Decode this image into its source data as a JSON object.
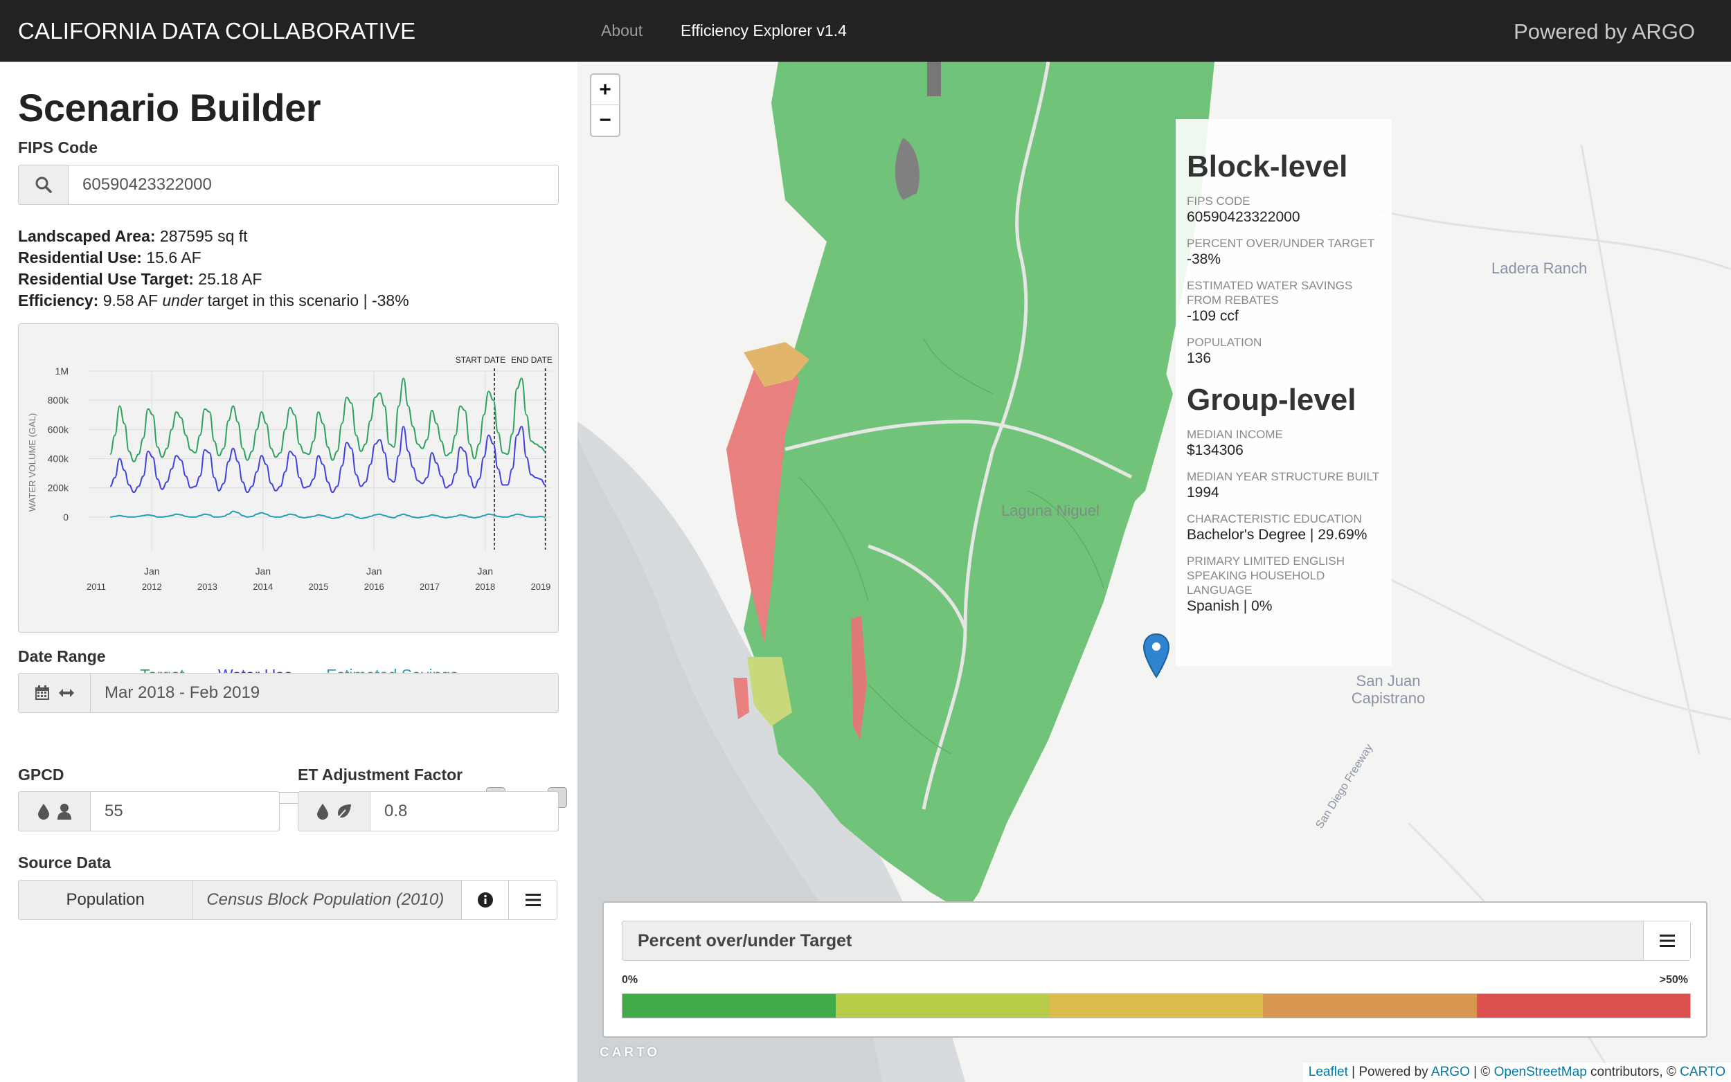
{
  "navbar": {
    "brand": "CALIFORNIA DATA COLLABORATIVE",
    "links": [
      "About",
      "Efficiency Explorer v1.4"
    ],
    "powered": "Powered by ARGO"
  },
  "sidebar": {
    "title": "Scenario Builder",
    "fips_label": "FIPS Code",
    "fips_value": "60590423322000",
    "stats": {
      "landscaped_label": "Landscaped Area:",
      "landscaped_value": " 287595 sq ft",
      "res_use_label": "Residential Use:",
      "res_use_value": " 15.6 AF",
      "res_target_label": "Residential Use Target:",
      "res_target_value": " 25.18 AF",
      "efficiency_label": "Efficiency:",
      "efficiency_pre": " 9.58 AF ",
      "efficiency_em": "under",
      "efficiency_post": " target in this scenario | -38%"
    },
    "date_range_label": "Date Range",
    "date_range_value": "Mar 2018 - Feb 2019",
    "gpcd_label": "GPCD",
    "gpcd_value": "55",
    "et_label": "ET Adjustment Factor",
    "et_value": "0.8",
    "source_label": "Source Data",
    "source_button": "Population",
    "source_value": "Census Block Population (2010)"
  },
  "chart_data": {
    "type": "line",
    "title": "",
    "xlabel": "",
    "ylabel": "WATER VOLUME (GAL)",
    "ylim": [
      -100000,
      1000000
    ],
    "yticks": [
      "0",
      "200k",
      "400k",
      "600k",
      "800k",
      "1M"
    ],
    "xticks_years": [
      "2011",
      "2012",
      "2013",
      "2014",
      "2015",
      "2016",
      "2017",
      "2018",
      "2019"
    ],
    "xticks_jan": [
      "Jan",
      "Jan",
      "Jan",
      "Jan"
    ],
    "annotations": [
      "START DATE",
      "END DATE"
    ],
    "colors": {
      "target": "#2ca25f",
      "water_use": "#4040e0",
      "savings": "#26a0b0"
    },
    "x_start": "2011-04",
    "x_end": "2019-02",
    "series": [
      {
        "name": "Target",
        "values": [
          430000,
          560000,
          760000,
          640000,
          450000,
          380000,
          430000,
          540000,
          740000,
          700000,
          480000,
          410000,
          470000,
          600000,
          720000,
          680000,
          560000,
          460000,
          440000,
          560000,
          740000,
          720000,
          520000,
          420000,
          470000,
          660000,
          760000,
          650000,
          470000,
          390000,
          450000,
          600000,
          720000,
          640000,
          470000,
          410000,
          440000,
          600000,
          750000,
          700000,
          500000,
          440000,
          430000,
          520000,
          720000,
          640000,
          480000,
          390000,
          450000,
          640000,
          820000,
          780000,
          560000,
          450000,
          500000,
          660000,
          820000,
          850000,
          760000,
          500000,
          480000,
          760000,
          950000,
          760000,
          620000,
          500000,
          470000,
          530000,
          730000,
          640000,
          520000,
          420000,
          440000,
          560000,
          760000,
          730000,
          500000,
          400000,
          500000,
          700000,
          860000,
          800000,
          580000,
          440000,
          430000,
          570000,
          880000,
          950000,
          700000,
          520000,
          500000,
          480000,
          450000
        ]
      },
      {
        "name": "Water Use",
        "values": [
          210000,
          270000,
          400000,
          320000,
          220000,
          170000,
          210000,
          280000,
          450000,
          410000,
          260000,
          190000,
          240000,
          330000,
          420000,
          390000,
          280000,
          200000,
          210000,
          280000,
          460000,
          440000,
          270000,
          180000,
          230000,
          380000,
          470000,
          380000,
          240000,
          170000,
          210000,
          310000,
          420000,
          360000,
          230000,
          180000,
          210000,
          310000,
          450000,
          420000,
          270000,
          200000,
          210000,
          260000,
          420000,
          360000,
          240000,
          170000,
          210000,
          350000,
          510000,
          470000,
          290000,
          210000,
          240000,
          360000,
          500000,
          530000,
          440000,
          260000,
          240000,
          420000,
          620000,
          450000,
          340000,
          250000,
          230000,
          270000,
          440000,
          370000,
          280000,
          200000,
          220000,
          300000,
          480000,
          450000,
          280000,
          200000,
          260000,
          410000,
          560000,
          500000,
          330000,
          220000,
          220000,
          330000,
          560000,
          620000,
          410000,
          290000,
          270000,
          260000,
          220000
        ]
      },
      {
        "name": "Estimated Savings",
        "values": [
          0,
          5000,
          10000,
          5000,
          0,
          0,
          5000,
          10000,
          15000,
          10000,
          0,
          0,
          5000,
          10000,
          20000,
          15000,
          5000,
          0,
          0,
          10000,
          20000,
          15000,
          0,
          0,
          5000,
          20000,
          40000,
          30000,
          10000,
          0,
          5000,
          20000,
          30000,
          20000,
          5000,
          0,
          0,
          10000,
          20000,
          15000,
          0,
          -5000,
          0,
          5000,
          15000,
          10000,
          0,
          -10000,
          -5000,
          5000,
          20000,
          15000,
          0,
          -10000,
          -5000,
          5000,
          15000,
          20000,
          10000,
          0,
          -5000,
          10000,
          20000,
          10000,
          0,
          -5000,
          0,
          5000,
          15000,
          10000,
          0,
          -5000,
          0,
          5000,
          15000,
          10000,
          0,
          -5000,
          0,
          10000,
          20000,
          15000,
          5000,
          0,
          0,
          10000,
          20000,
          15000,
          5000,
          0,
          0,
          5000,
          0
        ]
      }
    ]
  },
  "map": {
    "zoom_in": "+",
    "zoom_out": "−",
    "info": {
      "block_title": "Block-level",
      "fips_key": "FIPS CODE",
      "fips_val": "60590423322000",
      "pct_key": "PERCENT OVER/UNDER TARGET",
      "pct_val": "-38%",
      "savings_key": "ESTIMATED WATER SAVINGS FROM REBATES",
      "savings_val": "-109 ccf",
      "pop_key": "POPULATION",
      "pop_val": "136",
      "group_title": "Group-level",
      "income_key": "MEDIAN INCOME",
      "income_val": "$134306",
      "year_key": "MEDIAN YEAR STRUCTURE BUILT",
      "year_val": "1994",
      "edu_key": "CHARACTERISTIC EDUCATION",
      "edu_val": "Bachelor's Degree | 29.69%",
      "lang_key": "PRIMARY LIMITED ENGLISH SPEAKING HOUSEHOLD LANGUAGE",
      "lang_val": "Spanish | 0%"
    },
    "places": {
      "ladera": "Ladera Ranch",
      "laguna": "Laguna Niguel",
      "sanjuan": "San Juan Capistrano",
      "freeway": "San Diego Freeway"
    },
    "legend": {
      "title": "Percent over/under Target",
      "min": "0%",
      "max": ">50%",
      "colors": [
        "#41ab48",
        "#b8cc4a",
        "#dcbc4c",
        "#d99850",
        "#dc5050"
      ]
    },
    "carto_logo": "CARTO",
    "attribution": {
      "leaflet": "Leaflet",
      "powered_by": " | Powered by ",
      "argo": "ARGO",
      "sep1": " | © ",
      "osm": "OpenStreetMap",
      "contrib": " contributors, © ",
      "carto": "CARTO"
    }
  }
}
